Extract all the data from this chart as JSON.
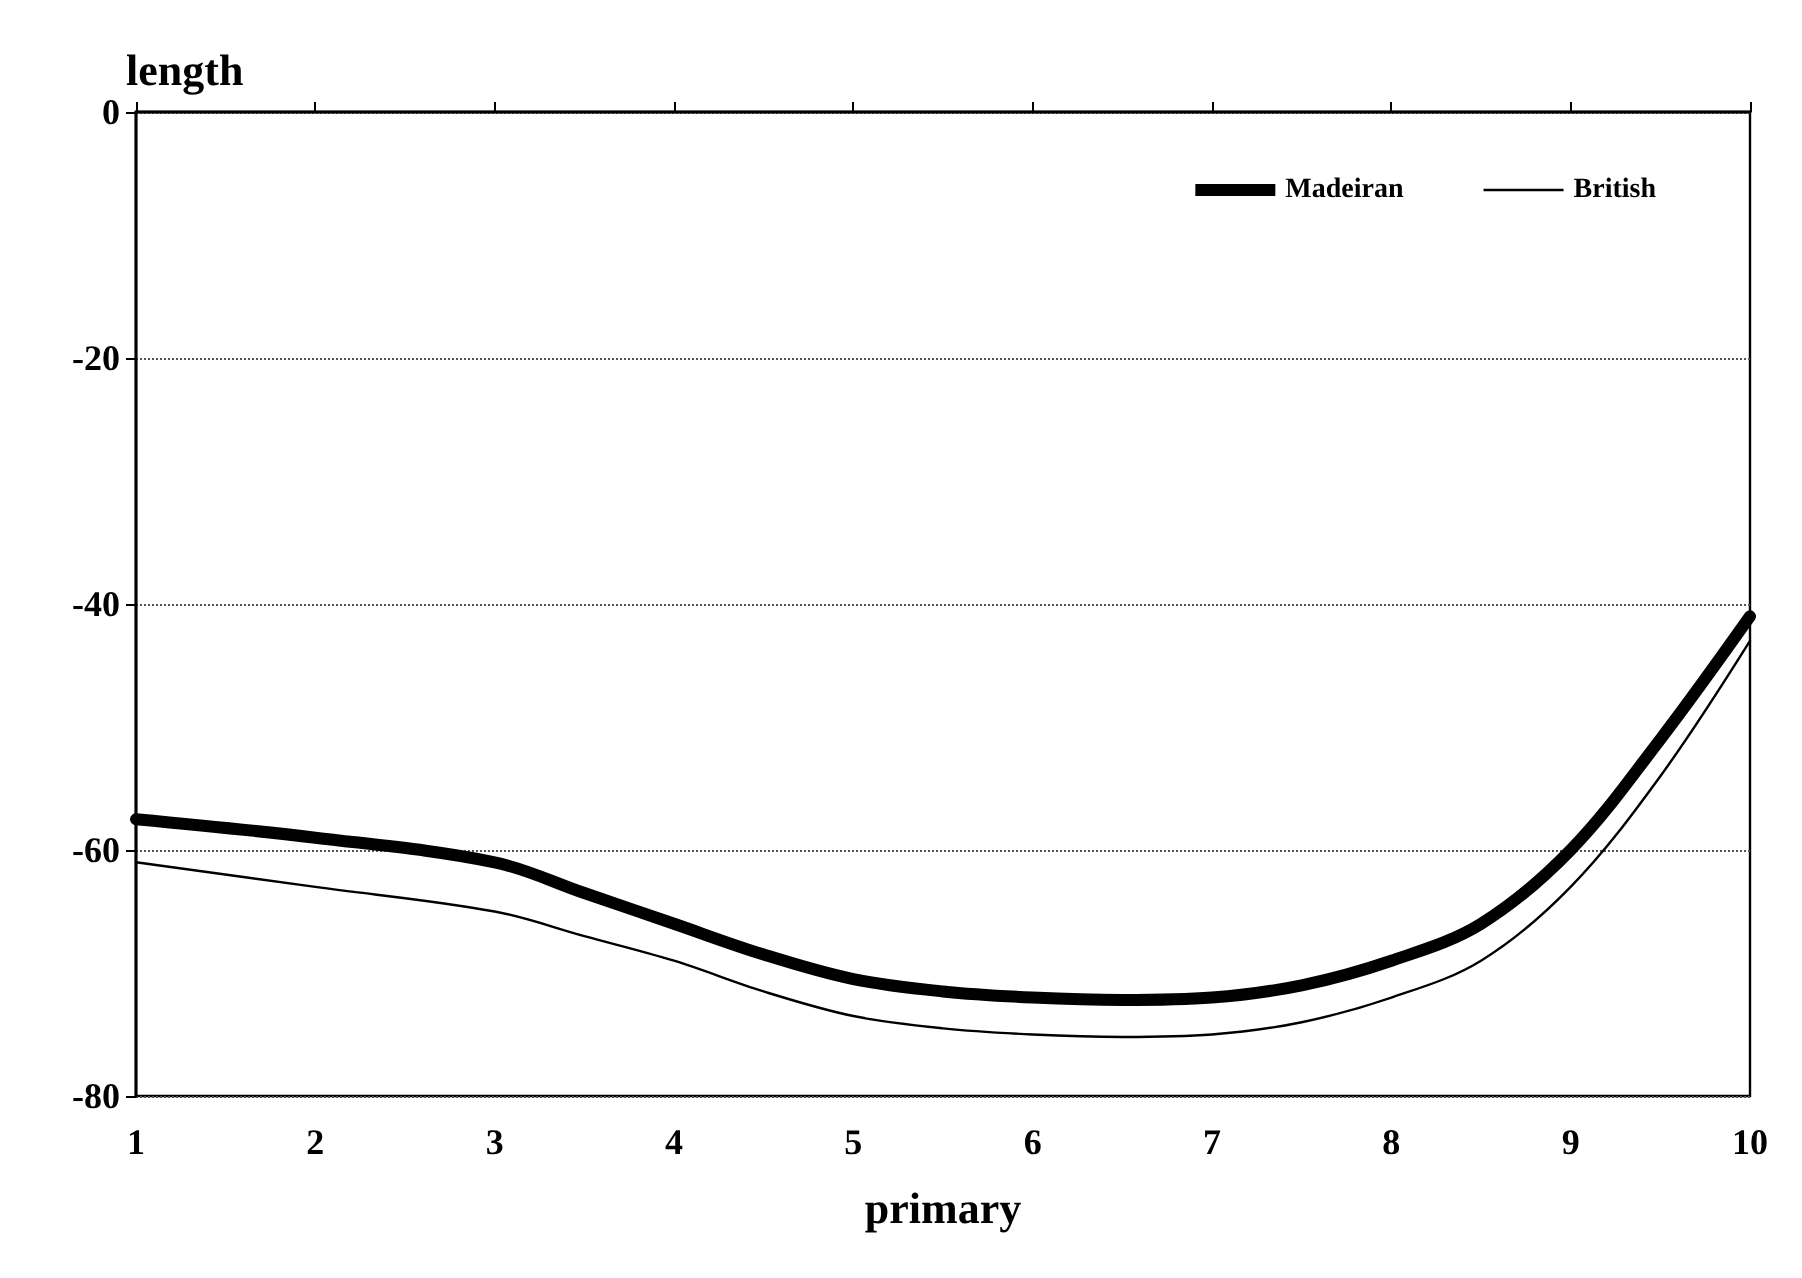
{
  "chart_data": {
    "type": "line",
    "xlabel": "primary",
    "ylabel": "length",
    "x": [
      1,
      2,
      3,
      3.5,
      4,
      4.5,
      5,
      5.5,
      6,
      6.5,
      7,
      7.5,
      8,
      8.5,
      9,
      9.5,
      10
    ],
    "series": [
      {
        "name": "Madeiran",
        "color": "#000000",
        "values": [
          -57.5,
          -59,
          -61,
          -63.5,
          -66,
          -68.5,
          -70.5,
          -71.5,
          -72,
          -72.2,
          -72,
          -71,
          -69,
          -66,
          -60,
          -51,
          -41
        ]
      },
      {
        "name": "British",
        "color": "#000000",
        "values": [
          -61,
          -63,
          -65,
          -67,
          -69,
          -71.5,
          -73.5,
          -74.5,
          -75,
          -75.2,
          -75,
          -74,
          -72,
          -69,
          -63,
          -54,
          -43
        ]
      }
    ],
    "xlim": [
      1,
      10
    ],
    "xticks": [
      1,
      2,
      3,
      4,
      5,
      6,
      7,
      8,
      9,
      10
    ],
    "ylim": [
      -80,
      0
    ],
    "yticks": [
      -80,
      -60,
      -40,
      -20,
      0
    ],
    "grid": "y",
    "legend": "top right",
    "marker": "none",
    "line_style": "solid"
  }
}
